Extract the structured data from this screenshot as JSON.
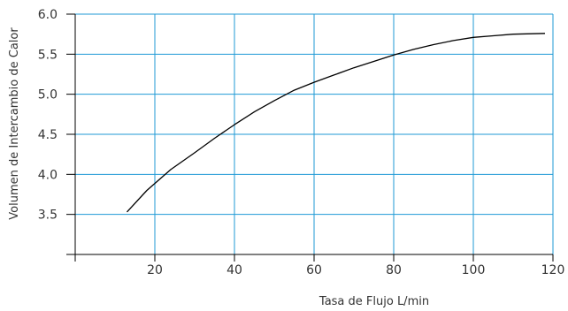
{
  "chart_data": {
    "type": "line",
    "title": "",
    "xlabel": "Tasa de Flujo L/min",
    "ylabel": "Volumen de Intercambio de Calor",
    "xlim": [
      0,
      120
    ],
    "ylim": [
      3.0,
      6.0
    ],
    "xticks": [
      20,
      40,
      60,
      80,
      100,
      120
    ],
    "xtick_labels": [
      "20",
      "40",
      "60",
      "80",
      "100",
      "120"
    ],
    "yticks": [
      3.5,
      4.0,
      4.5,
      5.0,
      5.5,
      6.0
    ],
    "ytick_labels": [
      "3.5",
      "4.0",
      "4.5",
      "5.0",
      "5.5",
      "6.0"
    ],
    "grid": true,
    "grid_color": "#1f9ad6",
    "line_color": "#000000",
    "series": [
      {
        "x": [
          13,
          18,
          24,
          30,
          35,
          40,
          45,
          50,
          55,
          60,
          65,
          70,
          75,
          80,
          85,
          90,
          95,
          100,
          105,
          110,
          118
        ],
        "values": [
          3.53,
          3.8,
          4.06,
          4.27,
          4.45,
          4.62,
          4.78,
          4.92,
          5.05,
          5.15,
          5.24,
          5.33,
          5.41,
          5.49,
          5.56,
          5.62,
          5.67,
          5.71,
          5.73,
          5.75,
          5.76
        ]
      }
    ]
  }
}
